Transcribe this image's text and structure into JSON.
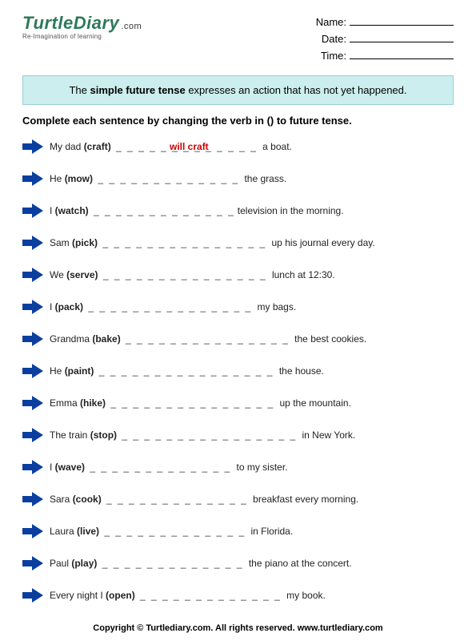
{
  "logo": {
    "brand_primary": "Turtle",
    "brand_secondary": "Diary",
    "dotcom": ".com",
    "tagline": "Re-Imagination of learning",
    "color": "#2d7a5a"
  },
  "meta": {
    "name_label": "Name:",
    "date_label": "Date:",
    "time_label": "Time:"
  },
  "rule": {
    "pre": "The ",
    "bold": "simple future tense",
    "post": " expresses an action that has not yet happened.",
    "bg": "#cceeee",
    "border": "#9ad0d0"
  },
  "instruction": "Complete each sentence by changing the verb in () to future tense.",
  "example_answer": "will craft",
  "arrow_color": "#0a3fa0",
  "items": [
    {
      "pre": "My dad ",
      "verb": "(craft)",
      "blank": "_ _ _ _ _ _ _ _ _ _ _ _ _",
      "post": " a boat."
    },
    {
      "pre": "He ",
      "verb": "(mow)",
      "blank": "_ _ _ _ _ _ _ _ _ _ _ _ _",
      "post": " the grass."
    },
    {
      "pre": "I ",
      "verb": "(watch)",
      "blank": "_ _ _ _ _ _ _ _ _ _ _ _ _",
      "post": "television in the morning."
    },
    {
      "pre": "Sam ",
      "verb": "(pick)",
      "blank": "_ _ _ _ _ _ _ _ _ _ _ _ _ _ _",
      "post": " up his journal every day."
    },
    {
      "pre": "We ",
      "verb": "(serve)",
      "blank": "_ _ _ _ _ _ _ _ _ _ _ _ _ _ _",
      "post": " lunch at 12:30."
    },
    {
      "pre": "I ",
      "verb": "(pack)",
      "blank": "_ _ _ _ _ _ _ _ _ _ _ _ _ _ _",
      "post": " my bags."
    },
    {
      "pre": "Grandma ",
      "verb": "(bake)",
      "blank": "_ _ _ _ _ _ _ _ _ _ _ _ _ _ _",
      "post": " the best cookies."
    },
    {
      "pre": "He ",
      "verb": "(paint)",
      "blank": "_ _ _ _ _ _ _ _ _ _ _ _ _ _ _ _",
      "post": " the house."
    },
    {
      "pre": "Emma ",
      "verb": "(hike)",
      "blank": "_ _ _ _ _ _ _ _ _ _ _ _ _ _ _",
      "post": " up the mountain."
    },
    {
      "pre": "The train ",
      "verb": "(stop)",
      "blank": "_ _ _ _ _ _ _ _ _ _ _ _ _ _ _ _",
      "post": " in New York."
    },
    {
      "pre": "I ",
      "verb": "(wave)",
      "blank": "_ _ _ _ _ _ _ _ _ _ _ _ _",
      "post": "  to my sister."
    },
    {
      "pre": "Sara ",
      "verb": "(cook)",
      "blank": "_ _ _ _ _ _ _ _ _ _ _ _ _",
      "post": " breakfast every morning."
    },
    {
      "pre": "Laura ",
      "verb": "(live)",
      "blank": "_ _ _ _ _ _ _ _ _ _ _ _ _",
      "post": " in Florida."
    },
    {
      "pre": "Paul ",
      "verb": "(play)",
      "blank": "_ _ _ _ _ _ _ _ _ _ _ _ _",
      "post": " the piano at the concert."
    },
    {
      "pre": "Every night I ",
      "verb": "(open)",
      "blank": "_ _ _ _ _ _ _ _ _ _ _ _ _",
      "post": " my book."
    }
  ],
  "footer": "Copyright © Turtlediary.com. All rights reserved. www.turtlediary.com"
}
